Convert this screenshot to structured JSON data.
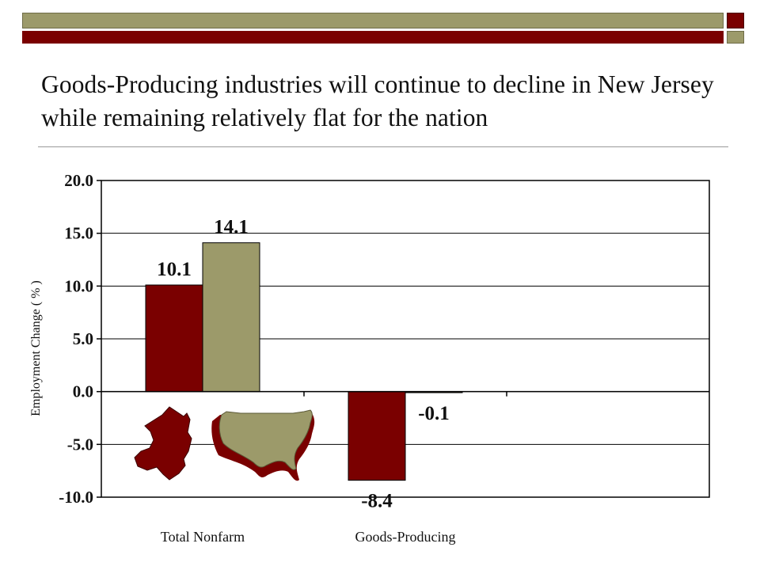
{
  "slide": {
    "title": "Goods-Producing industries will continue to decline in New Jersey while remaining relatively flat for the nation",
    "accent_colors": {
      "dark_red": "#7a0000",
      "olive": "#9c9a6a"
    }
  },
  "chart_data": {
    "type": "bar",
    "title": "",
    "xlabel": "",
    "ylabel": "Employment Change ( % )",
    "ylim": [
      -10,
      20
    ],
    "yticks": [
      20,
      15,
      10,
      5,
      0,
      -5,
      -10
    ],
    "ytick_labels": [
      "20.0",
      "15.0",
      "10.0",
      "5.0",
      "0.0",
      "-5.0",
      "-10.0"
    ],
    "grid": true,
    "categories": [
      "Total Nonfarm",
      "Goods-Producing"
    ],
    "series": [
      {
        "values": [
          10.1,
          -8.4
        ],
        "labels": [
          "10.1",
          "-8.4"
        ],
        "color": "#7a0000",
        "legend_icon": "new-jersey-map-icon"
      },
      {
        "values": [
          14.1,
          -0.1
        ],
        "labels": [
          "14.1",
          "-0.1"
        ],
        "color": "#9c9a6a",
        "legend_icon": "usa-map-icon"
      }
    ]
  }
}
